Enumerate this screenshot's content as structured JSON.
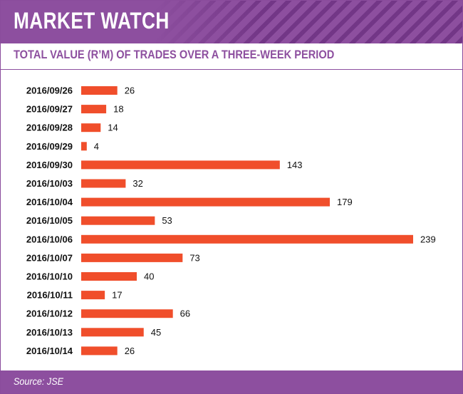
{
  "header": {
    "title": "MARKET WATCH",
    "subtitle": "TOTAL VALUE (R’M) OF TRADES OVER A THREE-WEEK PERIOD"
  },
  "footer": {
    "source": "Source: JSE"
  },
  "colors": {
    "brand": "#8d4f9f",
    "bar": "#f04e2b"
  },
  "chart_data": {
    "type": "bar",
    "orientation": "horizontal",
    "title": "TOTAL VALUE (R’M) OF TRADES OVER A THREE-WEEK PERIOD",
    "categories": [
      "2016/09/26",
      "2016/09/27",
      "2016/09/28",
      "2016/09/29",
      "2016/09/30",
      "2016/10/03",
      "2016/10/04",
      "2016/10/05",
      "2016/10/06",
      "2016/10/07",
      "2016/10/10",
      "2016/10/11",
      "2016/10/12",
      "2016/10/13",
      "2016/10/14"
    ],
    "values": [
      26,
      18,
      14,
      4,
      143,
      32,
      179,
      53,
      239,
      73,
      40,
      17,
      66,
      45,
      26
    ],
    "xlim": [
      0,
      239
    ],
    "grid": false,
    "legend": "none"
  }
}
